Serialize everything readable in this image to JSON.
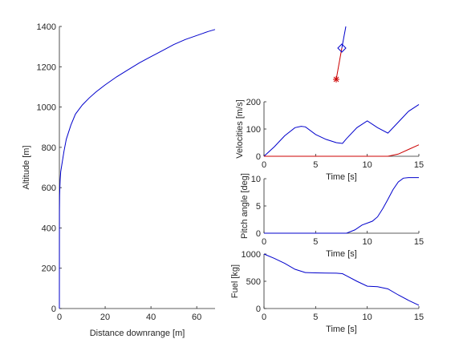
{
  "chart_data": [
    {
      "type": "line",
      "id": "trajectory",
      "xlabel": "Distance downrange [m]",
      "ylabel": "Altitude [m]",
      "xlim": [
        0,
        68
      ],
      "ylim": [
        0,
        1400
      ],
      "xticks": [
        "0",
        "20",
        "40",
        "60"
      ],
      "yticks": [
        "0",
        "200",
        "400",
        "600",
        "800",
        "1000",
        "1200",
        "1400"
      ],
      "series": [
        {
          "color": "#0000cc",
          "x": [
            0,
            0.05,
            0.1,
            0.2,
            0.35,
            0.6,
            1,
            2,
            3,
            5,
            7,
            10,
            13,
            16,
            20,
            25,
            30,
            35,
            40,
            45,
            50,
            55,
            60,
            65,
            68
          ],
          "y": [
            0,
            480,
            560,
            600,
            640,
            680,
            710,
            780,
            840,
            910,
            965,
            1010,
            1045,
            1075,
            1110,
            1150,
            1185,
            1220,
            1250,
            1280,
            1310,
            1335,
            1355,
            1375,
            1385
          ]
        }
      ]
    },
    {
      "type": "line",
      "id": "rocket-icon",
      "series": [
        {
          "color": "#0000cc",
          "x": [
            0,
            1
          ],
          "y": [
            0,
            1
          ]
        },
        {
          "color": "#cc0000",
          "x": [
            0,
            1
          ],
          "y": [
            0,
            1
          ]
        }
      ]
    },
    {
      "type": "line",
      "id": "velocities",
      "xlabel": "Time [s]",
      "ylabel": "Velocities [m/s]",
      "xlim": [
        0,
        15
      ],
      "ylim": [
        0,
        200
      ],
      "xticks": [
        "0",
        "5",
        "10",
        "15"
      ],
      "yticks": [
        "0",
        "100",
        "200"
      ],
      "series": [
        {
          "color": "#0000cc",
          "x": [
            0,
            1,
            2,
            3,
            3.6,
            4,
            5,
            6,
            7,
            7.6,
            8,
            9,
            10,
            11,
            12,
            13,
            14,
            15
          ],
          "y": [
            0,
            35,
            75,
            105,
            110,
            108,
            80,
            62,
            50,
            47,
            65,
            105,
            130,
            105,
            85,
            125,
            165,
            190
          ]
        },
        {
          "color": "#cc0000",
          "x": [
            0,
            12,
            13,
            14,
            15
          ],
          "y": [
            0,
            0,
            8,
            25,
            42
          ]
        }
      ]
    },
    {
      "type": "line",
      "id": "pitch",
      "xlabel": "Time [s]",
      "ylabel": "Pitch angle [deg]",
      "xlim": [
        0,
        15
      ],
      "ylim": [
        0,
        10
      ],
      "xticks": [
        "0",
        "5",
        "10",
        "15"
      ],
      "yticks": [
        "0",
        "5",
        "10"
      ],
      "series": [
        {
          "color": "#0000cc",
          "x": [
            0,
            8,
            8.8,
            9.5,
            10.5,
            11,
            11.5,
            12,
            12.5,
            13,
            13.5,
            14,
            15
          ],
          "y": [
            0,
            0,
            0.6,
            1.5,
            2.2,
            3,
            4.5,
            6.2,
            8,
            9.4,
            10.1,
            10.2,
            10.2
          ]
        }
      ]
    },
    {
      "type": "line",
      "id": "fuel",
      "xlabel": "Time [s]",
      "ylabel": "Fuel [kg]",
      "xlim": [
        0,
        15
      ],
      "ylim": [
        0,
        1000
      ],
      "xticks": [
        "0",
        "5",
        "10",
        "15"
      ],
      "yticks": [
        "0",
        "500",
        "1000"
      ],
      "series": [
        {
          "color": "#0000cc",
          "x": [
            0,
            1,
            2,
            3,
            4,
            5,
            6,
            7,
            7.6,
            8,
            9,
            10,
            11,
            12,
            13,
            14,
            15
          ],
          "y": [
            1000,
            920,
            830,
            720,
            660,
            655,
            650,
            648,
            640,
            600,
            500,
            410,
            400,
            360,
            250,
            150,
            60
          ]
        }
      ]
    }
  ]
}
